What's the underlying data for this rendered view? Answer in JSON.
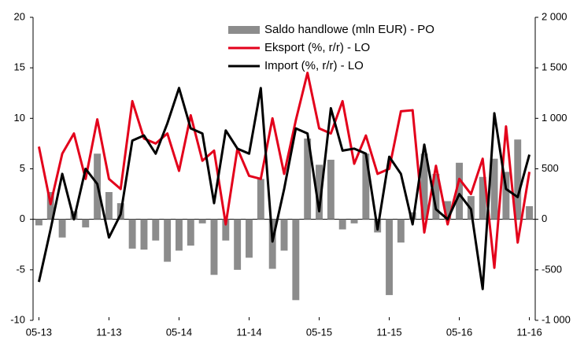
{
  "chart_data": {
    "type": "bar-line",
    "categories": [
      "05-13",
      null,
      null,
      null,
      null,
      null,
      "11-13",
      null,
      null,
      null,
      null,
      null,
      "05-14",
      null,
      null,
      null,
      null,
      null,
      "11-14",
      null,
      null,
      null,
      null,
      null,
      "05-15",
      null,
      null,
      null,
      null,
      null,
      "11-15",
      null,
      null,
      null,
      null,
      null,
      "05-16",
      null,
      null,
      null,
      null,
      null,
      "11-16"
    ],
    "series": [
      {
        "name": "Saldo handlowe (mln EUR) - PO",
        "color": "#8c8c8c",
        "type": "bar",
        "axis": "y2",
        "values": [
          -60,
          270,
          -180,
          80,
          -80,
          650,
          270,
          160,
          -290,
          -300,
          -210,
          -420,
          -310,
          -260,
          -40,
          -550,
          -210,
          -500,
          -380,
          400,
          -490,
          -310,
          -800,
          800,
          540,
          590,
          -100,
          -40,
          650,
          -130,
          -750,
          -230,
          70,
          650,
          450,
          180,
          560,
          230,
          420,
          600,
          470,
          790,
          130
        ]
      },
      {
        "name": "Eksport (%, r/r) - LO",
        "color": "#e3001b",
        "type": "line",
        "values": [
          7.2,
          1.5,
          6.5,
          8.5,
          4.0,
          9.9,
          4.0,
          3.0,
          11.7,
          8.0,
          7.5,
          8.5,
          4.8,
          10.3,
          5.8,
          6.8,
          -0.5,
          7.0,
          4.3,
          4.0,
          10.0,
          4.5,
          9.8,
          14.5,
          9.0,
          8.5,
          11.7,
          5.5,
          8.3,
          4.5,
          5.0,
          10.7,
          10.8,
          -1.3,
          5.3,
          -0.5,
          4.0,
          2.5,
          6.0,
          -4.8,
          9.2,
          -2.3,
          4.7
        ]
      },
      {
        "name": "Import (%, r/r) - LO",
        "color": "#000000",
        "type": "line",
        "values": [
          -6.2,
          -1,
          4.5,
          0,
          5,
          3.5,
          -1.8,
          0.5,
          7.8,
          8.3,
          6.5,
          9.5,
          13,
          9,
          8.5,
          1.6,
          8.8,
          7,
          6.5,
          13,
          -2.2,
          3,
          9,
          8.5,
          0.8,
          11,
          6.8,
          7,
          6.5,
          -1,
          6.2,
          4.5,
          -0.5,
          7.4,
          1,
          0,
          2.5,
          1,
          -6.9,
          10.5,
          3,
          2.2,
          6.4
        ]
      }
    ],
    "ylim": [
      -10,
      20
    ],
    "yticks": [
      20,
      15,
      10,
      5,
      0,
      -5,
      -10
    ],
    "y2lim": [
      -1000,
      2000
    ],
    "y2ticks": [
      {
        "value": 2000,
        "label": "2 000"
      },
      {
        "value": 1500,
        "label": "1 500"
      },
      {
        "value": 1000,
        "label": "1 000"
      },
      500,
      0,
      -500,
      {
        "value": -1000,
        "label": "-1 000"
      }
    ]
  }
}
